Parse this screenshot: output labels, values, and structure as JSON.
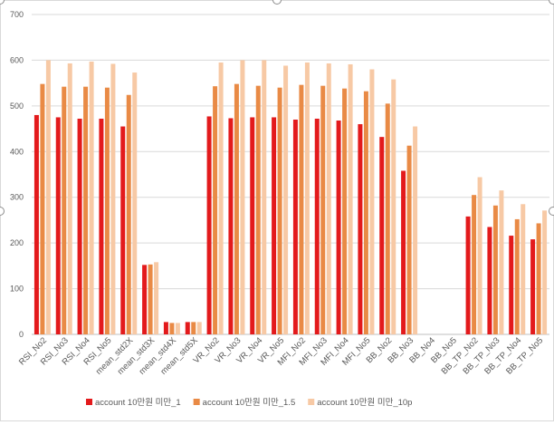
{
  "chart_data": {
    "type": "bar",
    "categories": [
      "RSI_No2",
      "RSI_No3",
      "RSI_No4",
      "RSI_No5",
      "mean_std2X",
      "mean_std3X",
      "mean_std4X",
      "mean_std5X",
      "VR_No2",
      "VR_No3",
      "VR_No4",
      "VR_No5",
      "MFI_No2",
      "MFI_No3",
      "MFI_No4",
      "MFI_No5",
      "BB_No2",
      "BB_No3",
      "BB_No4",
      "BB_No5",
      "BB_TP_No2",
      "BB_TP_No3",
      "BB_TP_No4",
      "BB_TP_No5"
    ],
    "series": [
      {
        "name": "account 10만원 미만_1",
        "color": "#e31a1c",
        "values": [
          480,
          475,
          472,
          472,
          455,
          152,
          27,
          27,
          477,
          473,
          475,
          475,
          470,
          472,
          468,
          460,
          432,
          358,
          null,
          null,
          258,
          235,
          216,
          208
        ]
      },
      {
        "name": "account 10만원 미만_1.5",
        "color": "#e98a45",
        "values": [
          548,
          542,
          542,
          540,
          524,
          153,
          25,
          27,
          543,
          548,
          544,
          540,
          546,
          544,
          538,
          532,
          505,
          413,
          null,
          null,
          305,
          282,
          252,
          243
        ]
      },
      {
        "name": "account 10만원 미만_10p",
        "color": "#f7c9a5",
        "values": [
          600,
          593,
          597,
          592,
          573,
          158,
          25,
          27,
          595,
          600,
          600,
          588,
          595,
          593,
          591,
          580,
          558,
          455,
          null,
          null,
          344,
          315,
          285,
          271
        ]
      }
    ],
    "yticks": [
      0,
      100,
      200,
      300,
      400,
      500,
      600,
      700
    ],
    "ylim": [
      0,
      700
    ],
    "grid": true,
    "legend": "bottom",
    "title": "",
    "xlabel": "",
    "ylabel": ""
  }
}
